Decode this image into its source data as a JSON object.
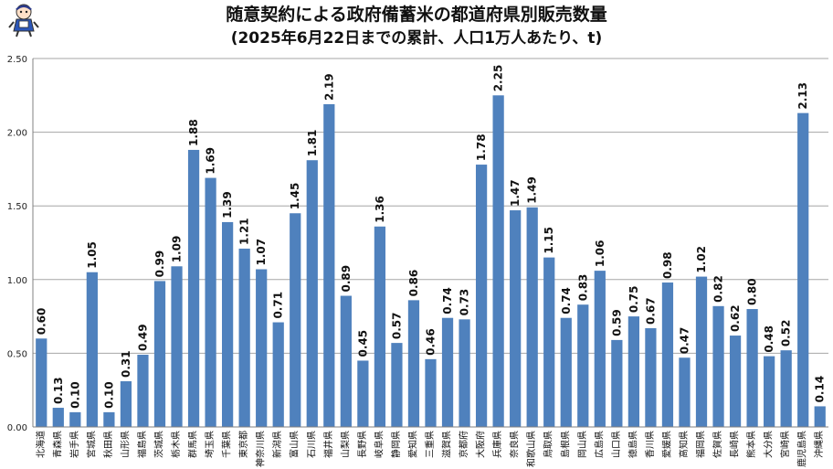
{
  "chart_data": {
    "type": "bar",
    "title": "随意契約による政府備蓄米の都道府県別販売数量",
    "subtitle": "(2025年6月22日までの累計、人口1万人あたり、t)",
    "xlabel": "",
    "ylabel": "",
    "ylim": [
      0,
      2.5
    ],
    "yticks": [
      "0.00",
      "0.50",
      "1.00",
      "1.50",
      "2.00",
      "2.50"
    ],
    "grid": true,
    "bar_color": "#4f81bd",
    "categories": [
      "北海道",
      "青森県",
      "岩手県",
      "宮城県",
      "秋田県",
      "山形県",
      "福島県",
      "茨城県",
      "栃木県",
      "群馬県",
      "埼玉県",
      "千葉県",
      "東京都",
      "神奈川県",
      "新潟県",
      "富山県",
      "石川県",
      "福井県",
      "山梨県",
      "長野県",
      "岐阜県",
      "静岡県",
      "愛知県",
      "三重県",
      "滋賀県",
      "京都府",
      "大阪府",
      "兵庫県",
      "奈良県",
      "和歌山県",
      "鳥取県",
      "島根県",
      "岡山県",
      "広島県",
      "山口県",
      "徳島県",
      "香川県",
      "愛媛県",
      "高知県",
      "福岡県",
      "佐賀県",
      "長崎県",
      "熊本県",
      "大分県",
      "宮崎県",
      "鹿児島県",
      "沖縄県"
    ],
    "values": [
      0.6,
      0.13,
      0.1,
      1.05,
      0.1,
      0.31,
      0.49,
      0.99,
      1.09,
      1.88,
      1.69,
      1.39,
      1.21,
      1.07,
      0.71,
      1.45,
      1.81,
      2.19,
      0.89,
      0.45,
      1.36,
      0.57,
      0.86,
      0.46,
      0.74,
      0.73,
      1.78,
      2.25,
      1.47,
      1.49,
      1.15,
      0.74,
      0.83,
      1.06,
      0.59,
      0.75,
      0.67,
      0.98,
      0.47,
      1.02,
      0.82,
      0.62,
      0.8,
      0.48,
      0.52,
      2.13,
      0.14
    ],
    "value_labels": [
      "0.60",
      "0.13",
      "0.10",
      "1.05",
      "0.10",
      "0.31",
      "0.49",
      "0.99",
      "1.09",
      "1.88",
      "1.69",
      "1.39",
      "1.21",
      "1.07",
      "0.71",
      "1.45",
      "1.81",
      "2.19",
      "0.89",
      "0.45",
      "1.36",
      "0.57",
      "0.86",
      "0.46",
      "0.74",
      "0.73",
      "1.78",
      "2.25",
      "1.47",
      "1.49",
      "1.15",
      "0.74",
      "0.83",
      "1.06",
      "0.59",
      "0.75",
      "0.67",
      "0.98",
      "0.47",
      "1.02",
      "0.82",
      "0.62",
      "0.80",
      "0.48",
      "0.52",
      "2.13",
      "0.14"
    ]
  },
  "mascot_icon": "mascot-icon"
}
